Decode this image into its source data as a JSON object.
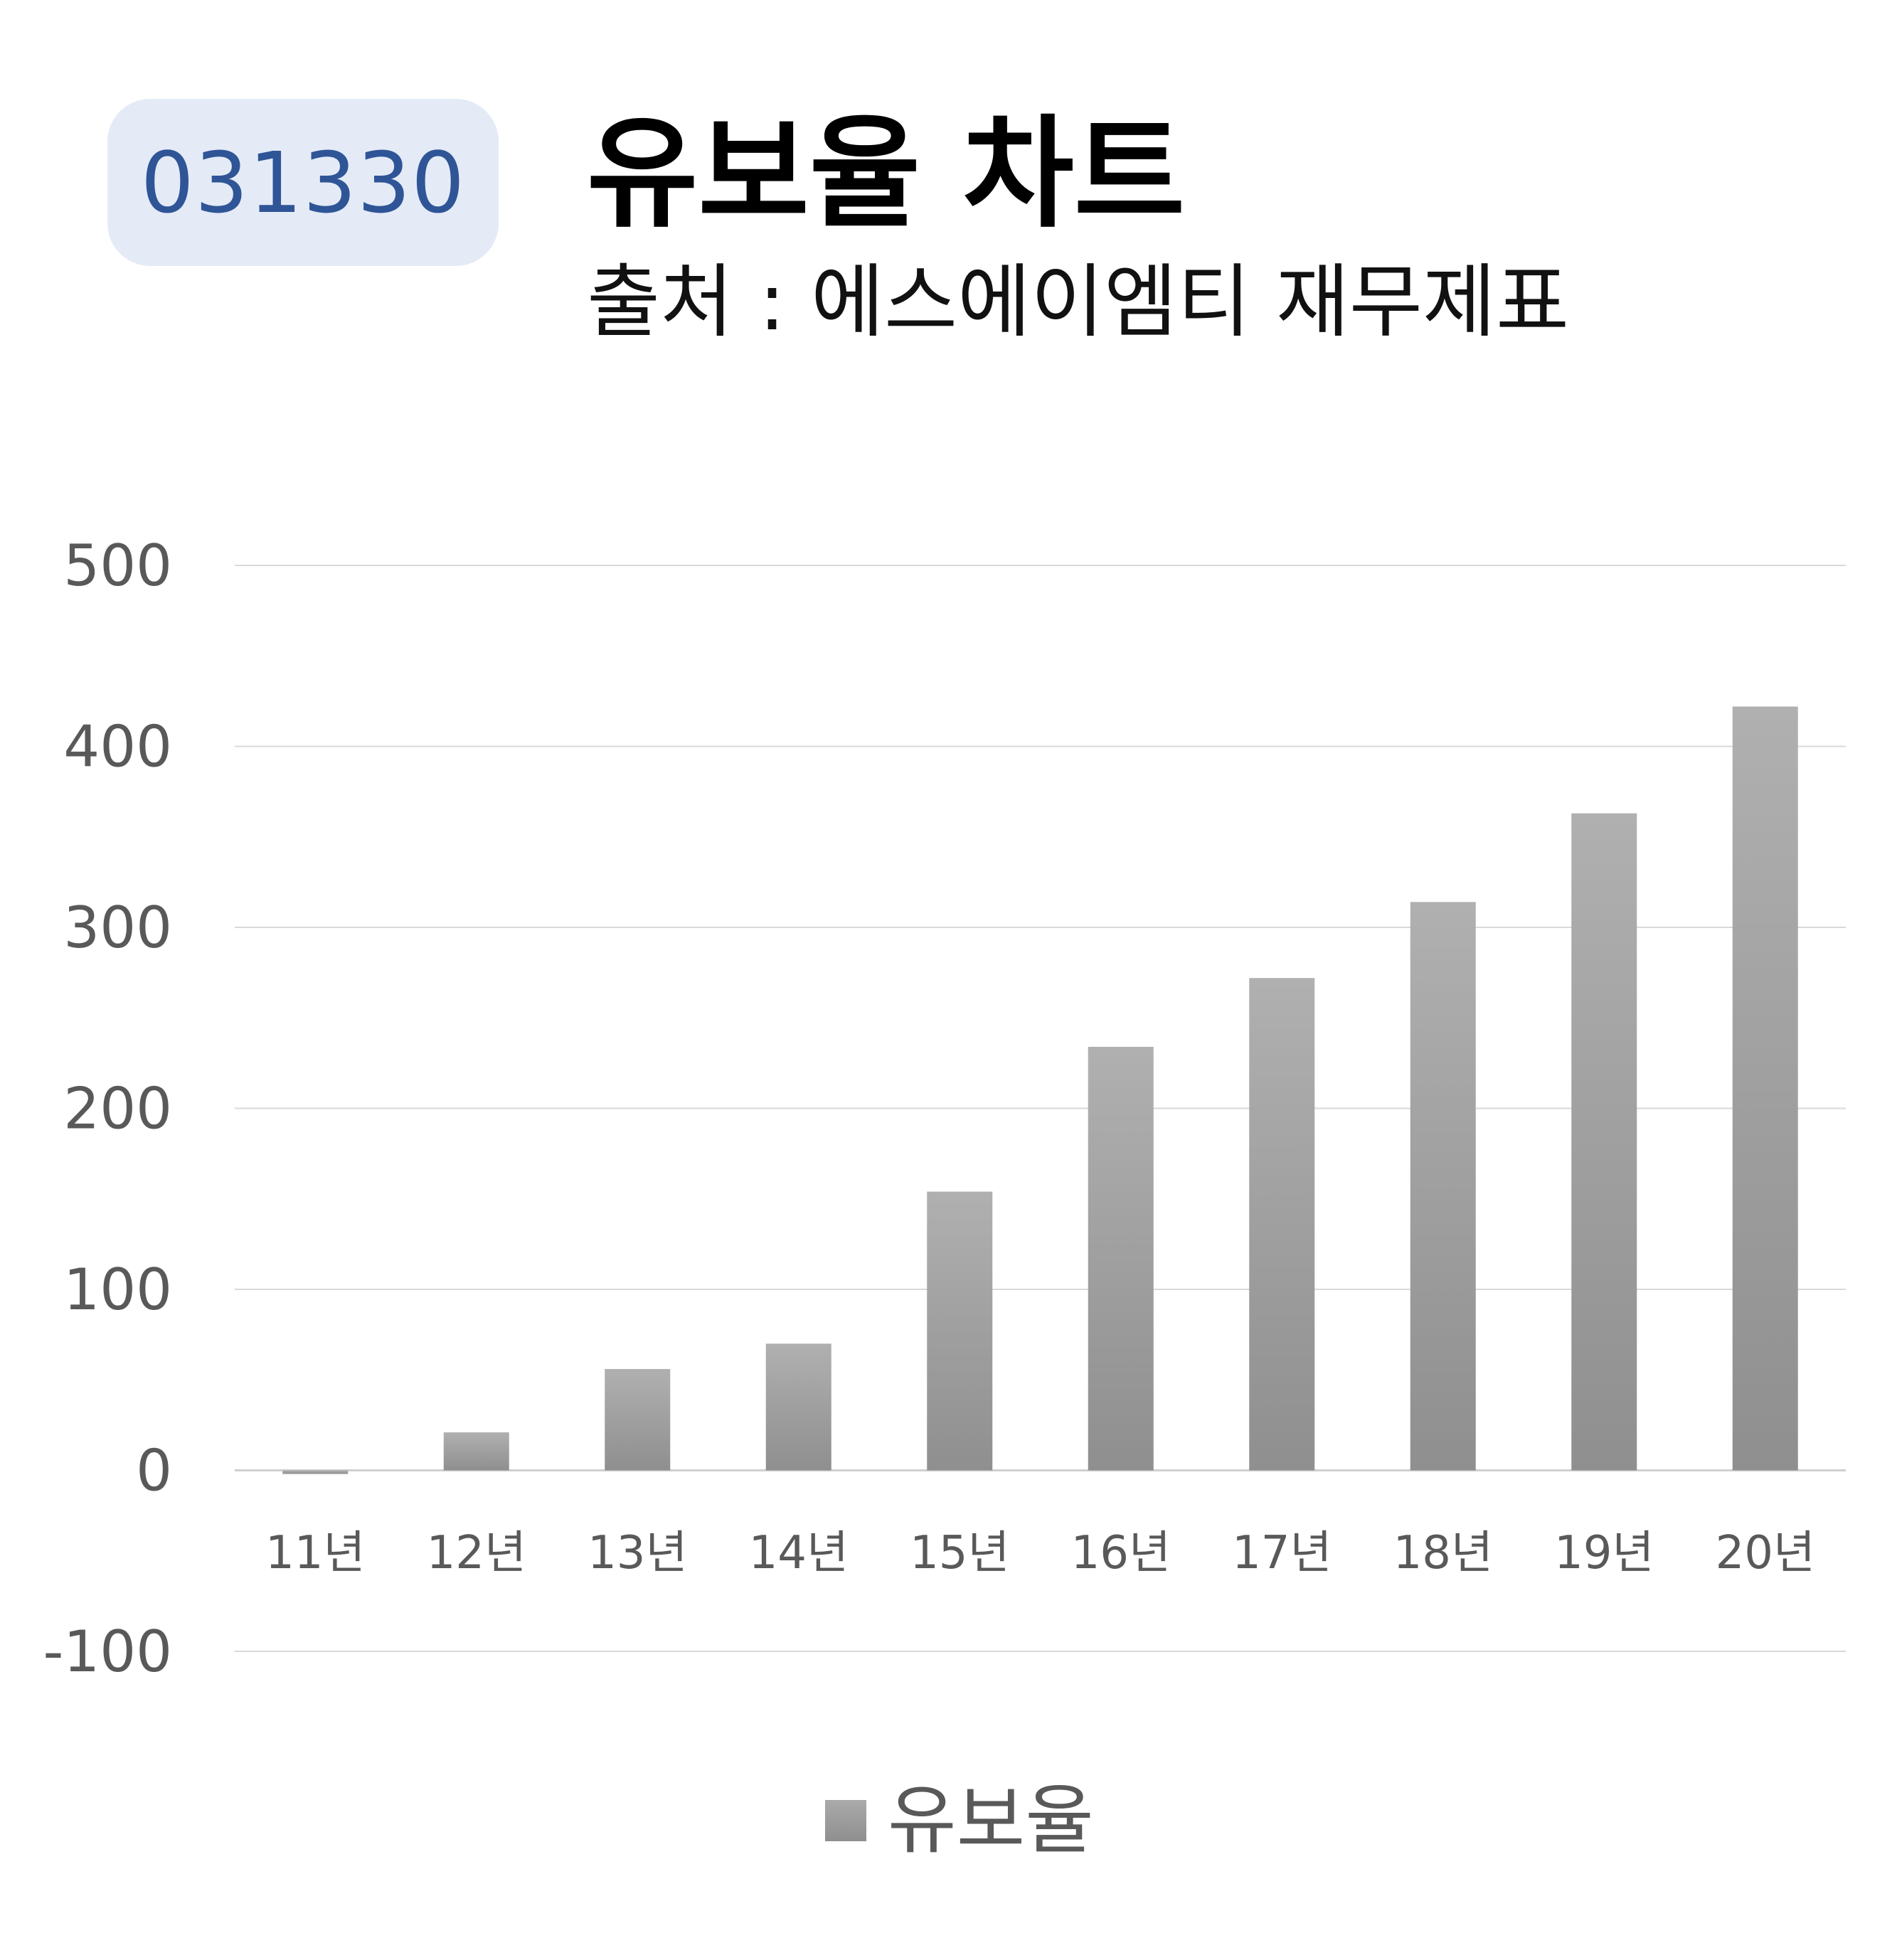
{
  "header": {
    "code": "031330",
    "title": "유보율 차트",
    "subtitle": "출처 : 에스에이엠티 재무제표"
  },
  "colors": {
    "badge_bg": "#e4ebf6",
    "badge_text": "#2f5597",
    "bar_top": "#b0b0b0",
    "bar_bottom": "#8f8f8f",
    "grid": "#d9d9d9",
    "axis_text": "#595959"
  },
  "chart_data": {
    "type": "bar",
    "categories": [
      "11년",
      "12년",
      "13년",
      "14년",
      "15년",
      "16년",
      "17년",
      "18년",
      "19년",
      "20년"
    ],
    "series": [
      {
        "name": "유보율",
        "values": [
          -2,
          21,
          56,
          70,
          154,
          234,
          272,
          314,
          363,
          422
        ]
      }
    ],
    "ylim": [
      -100,
      500
    ],
    "yticks": [
      -100,
      0,
      100,
      200,
      300,
      400,
      500
    ],
    "ytick_labels": [
      "-100",
      "0",
      "100",
      "200",
      "300",
      "400",
      "500"
    ],
    "grid": true,
    "legend": "bottom",
    "title": "유보율 차트",
    "xlabel": "",
    "ylabel": ""
  }
}
